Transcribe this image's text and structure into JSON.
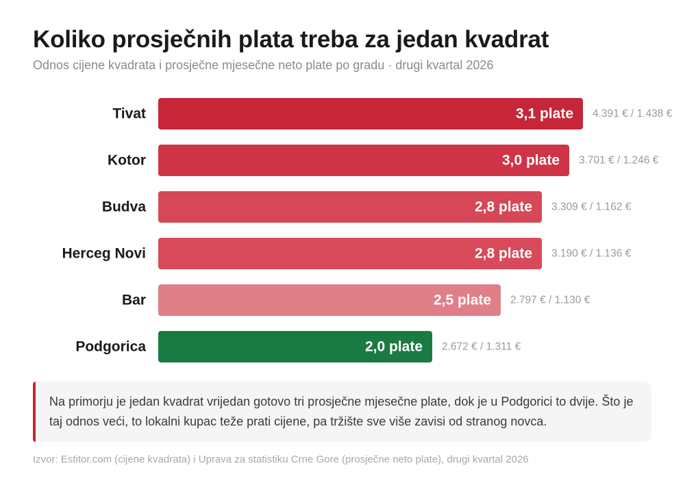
{
  "header": {
    "title": "Koliko prosječnih plata treba za jedan kvadrat",
    "subtitle": "Odnos cijene kvadrata i prosječne mjesečne neto plate po gradu · drugi kvartal 2026"
  },
  "chart_data": {
    "type": "bar",
    "orientation": "horizontal",
    "categories": [
      "Tivat",
      "Kotor",
      "Budva",
      "Herceg Novi",
      "Bar",
      "Podgorica"
    ],
    "values": [
      3.1,
      3.0,
      2.8,
      2.8,
      2.5,
      2.0
    ],
    "value_labels": [
      "3,1 plate",
      "3,0 plate",
      "2,8 plate",
      "2,8 plate",
      "2,5 plate",
      "2,0 plate"
    ],
    "ratio_labels": [
      "4.391 € / 1.438 €",
      "3.701 € / 1.246 €",
      "3.309 € / 1.162 €",
      "3.190 € / 1.136 €",
      "2.797 € / 1.130 €",
      "2.672 € / 1.311 €"
    ],
    "price_per_m2_eur": [
      4391,
      3701,
      3309,
      3190,
      2797,
      2672
    ],
    "avg_net_salary_eur": [
      1438,
      1246,
      1162,
      1136,
      1130,
      1311
    ],
    "colors": [
      "#c62638",
      "#cf3446",
      "#d64857",
      "#d84a59",
      "#e17f88",
      "#1b7a41"
    ],
    "xlim": [
      0,
      3.1
    ],
    "grid": false,
    "legend": "none"
  },
  "note": {
    "text": "Na primorju je jedan kvadrat vrijedan gotovo tri prosječne mjesečne plate, dok je u Podgorici to dvije. Što je taj odnos veći, to lokalni kupac teže prati cijene, pa tržište sve više zavisi od stranog novca.",
    "accent_color": "#c62638"
  },
  "footer": {
    "source": "Izvor: Estitor.com (cijene kvadrata) i Uprava za statistiku Crne Gore (prosječne neto plate), drugi kvartal 2026"
  }
}
